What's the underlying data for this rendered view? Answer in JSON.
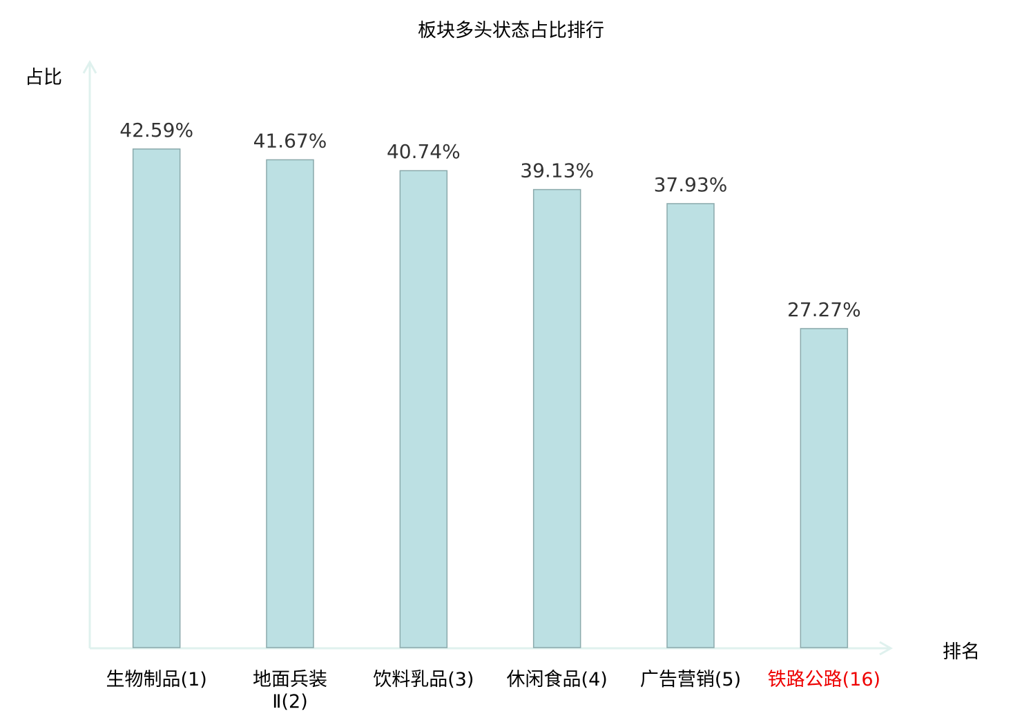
{
  "chart_data": {
    "type": "bar",
    "title": "板块多头状态占比排行",
    "ylabel": "占比",
    "xlabel": "排名",
    "categories": [
      "生物制品(1)",
      "地面兵装Ⅱ(2)",
      "饮料乳品(3)",
      "休闲食品(4)",
      "广告营销(5)",
      "铁路公路(16)"
    ],
    "category_lines": [
      [
        "生物制品(1)"
      ],
      [
        "地面兵装",
        "Ⅱ(2)"
      ],
      [
        "饮料乳品(3)"
      ],
      [
        "休闲食品(4)"
      ],
      [
        "广告营销(5)"
      ],
      [
        "铁路公路(16)"
      ]
    ],
    "values": [
      42.59,
      41.67,
      40.74,
      39.13,
      37.93,
      27.27
    ],
    "data_labels": [
      "42.59%",
      "41.67%",
      "40.74%",
      "39.13%",
      "37.93%",
      "27.27%"
    ],
    "highlighted_category": "铁路公路(16)",
    "ylim": [
      0,
      50
    ],
    "grid": false,
    "colors": {
      "bar_fill": "#bce0e3",
      "bar_stroke": "#8aa9ab",
      "axis": "#dff1ee",
      "label": "#333333",
      "highlight": "#ee0000"
    }
  }
}
